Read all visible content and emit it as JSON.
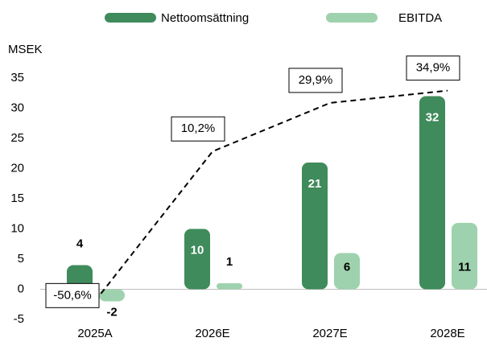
{
  "chart_data": {
    "type": "bar",
    "y_axis_label": "MSEK",
    "categories": [
      "2025A",
      "2026E",
      "2027E",
      "2028E"
    ],
    "series": [
      {
        "name": "Nettoomsättning",
        "color": "#3f8b5b",
        "values": [
          4,
          10,
          21,
          32
        ]
      },
      {
        "name": "EBITDA",
        "color": "#9ed2ae",
        "values": [
          -2,
          1,
          6,
          11
        ]
      }
    ],
    "line": {
      "type": "line",
      "axis": "y2",
      "style": "dashed",
      "color": "#000000",
      "values": [
        -50.6,
        10.2,
        29.9,
        34.9
      ],
      "value_labels": [
        "-50,6%",
        "10,2%",
        "29,9%",
        "34,9%"
      ]
    },
    "ylim": [
      -5,
      35
    ],
    "yticks": [
      -5,
      0,
      5,
      10,
      15,
      20,
      25,
      30,
      35
    ],
    "y2lim": [
      -58,
      40
    ],
    "grid": false,
    "legend": "top"
  }
}
